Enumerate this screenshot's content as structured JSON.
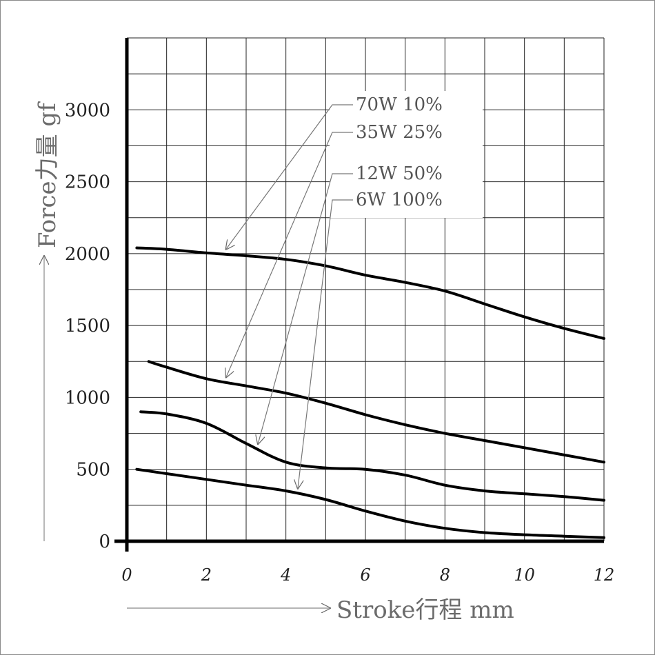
{
  "chart_data": {
    "type": "line",
    "xlabel": "Stroke行程 mm",
    "ylabel": "Force力量 gf",
    "xlim": [
      0,
      12
    ],
    "ylim": [
      0,
      3500
    ],
    "x_ticks": [
      0,
      2,
      4,
      6,
      8,
      10,
      12
    ],
    "y_ticks": [
      0,
      500,
      1000,
      1500,
      2000,
      2500,
      3000
    ],
    "grid": true,
    "series": [
      {
        "name": "70W 10%",
        "x": [
          0.25,
          1,
          2,
          3,
          4,
          5,
          6,
          7,
          8,
          9,
          10,
          11,
          12
        ],
        "y": [
          2040,
          2030,
          2005,
          1985,
          1960,
          1915,
          1850,
          1800,
          1740,
          1650,
          1560,
          1480,
          1410
        ]
      },
      {
        "name": "35W 25%",
        "x": [
          0.55,
          1,
          2,
          3,
          4,
          5,
          6,
          7,
          8,
          9,
          10,
          11,
          12
        ],
        "y": [
          1250,
          1210,
          1130,
          1080,
          1030,
          960,
          880,
          810,
          750,
          700,
          650,
          600,
          550
        ]
      },
      {
        "name": "12W 50%",
        "x": [
          0.35,
          1,
          2,
          3,
          4,
          5,
          6,
          7,
          8,
          9,
          10,
          11,
          12
        ],
        "y": [
          900,
          885,
          820,
          680,
          550,
          510,
          500,
          460,
          390,
          350,
          330,
          310,
          285
        ]
      },
      {
        "name": "6W 100%",
        "x": [
          0.25,
          1,
          2,
          3,
          4,
          5,
          6,
          7,
          8,
          9,
          10,
          11,
          12
        ],
        "y": [
          500,
          470,
          430,
          390,
          350,
          290,
          210,
          140,
          90,
          60,
          45,
          35,
          25
        ]
      }
    ]
  }
}
